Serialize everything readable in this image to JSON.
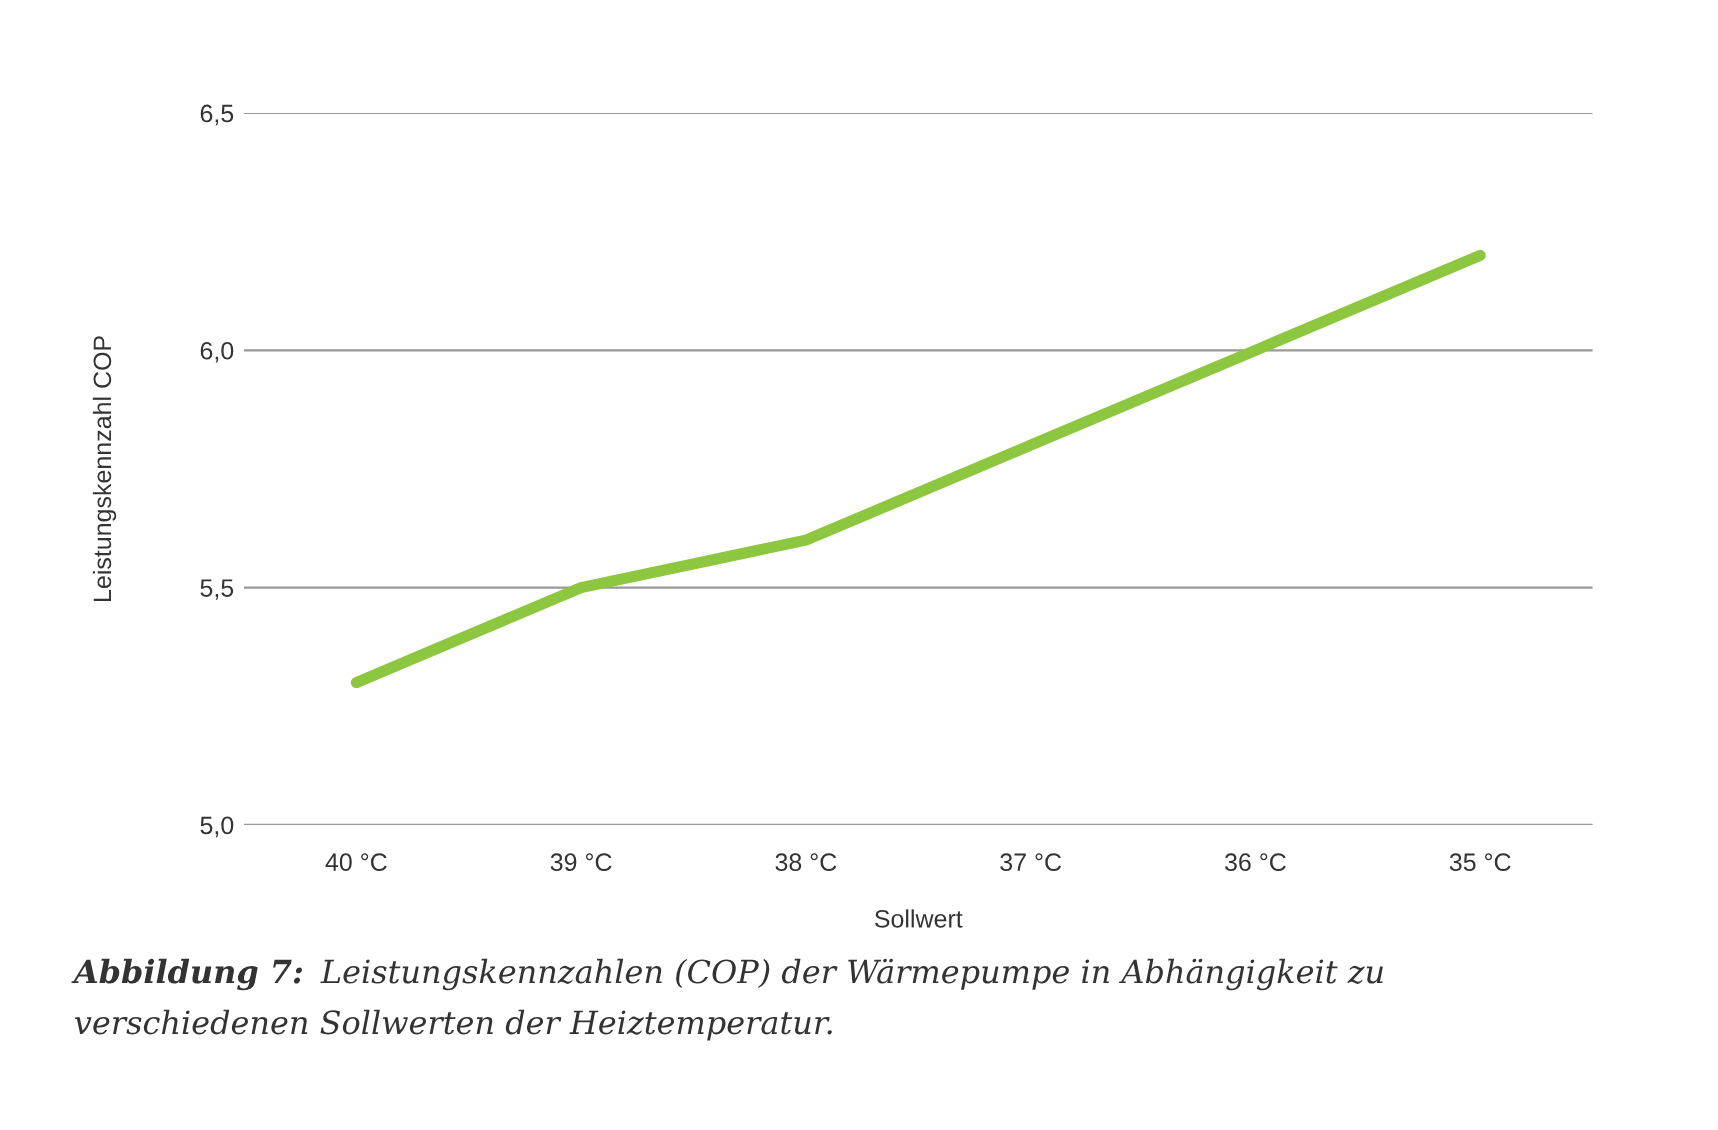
{
  "chart_data": {
    "type": "line",
    "categories": [
      "40 °C",
      "39 °C",
      "38 °C",
      "37 °C",
      "36 °C",
      "35 °C"
    ],
    "series": [
      {
        "color": "#8dc63f",
        "values": [
          5.3,
          5.5,
          5.6,
          5.8,
          6.0,
          6.2
        ]
      }
    ],
    "xlabel": "Sollwert",
    "ylabel": "Leistungskennzahl COP",
    "ylim": [
      5.0,
      6.5
    ],
    "yticks": [
      {
        "value": 5.0,
        "label": "5,0"
      },
      {
        "value": 5.5,
        "label": "5,5"
      },
      {
        "value": 6.0,
        "label": "6,0"
      },
      {
        "value": 6.5,
        "label": "6,5"
      }
    ],
    "grid": "y",
    "legend": false,
    "marker": "none",
    "line_style": "solid",
    "annotations": [
      "Abbildung 7:",
      "Leistungskennzahlen (COP) der Wärmepumpe in Abhängigkeit zu",
      "verschiedenen Sollwerten der Heiztemperatur."
    ]
  }
}
